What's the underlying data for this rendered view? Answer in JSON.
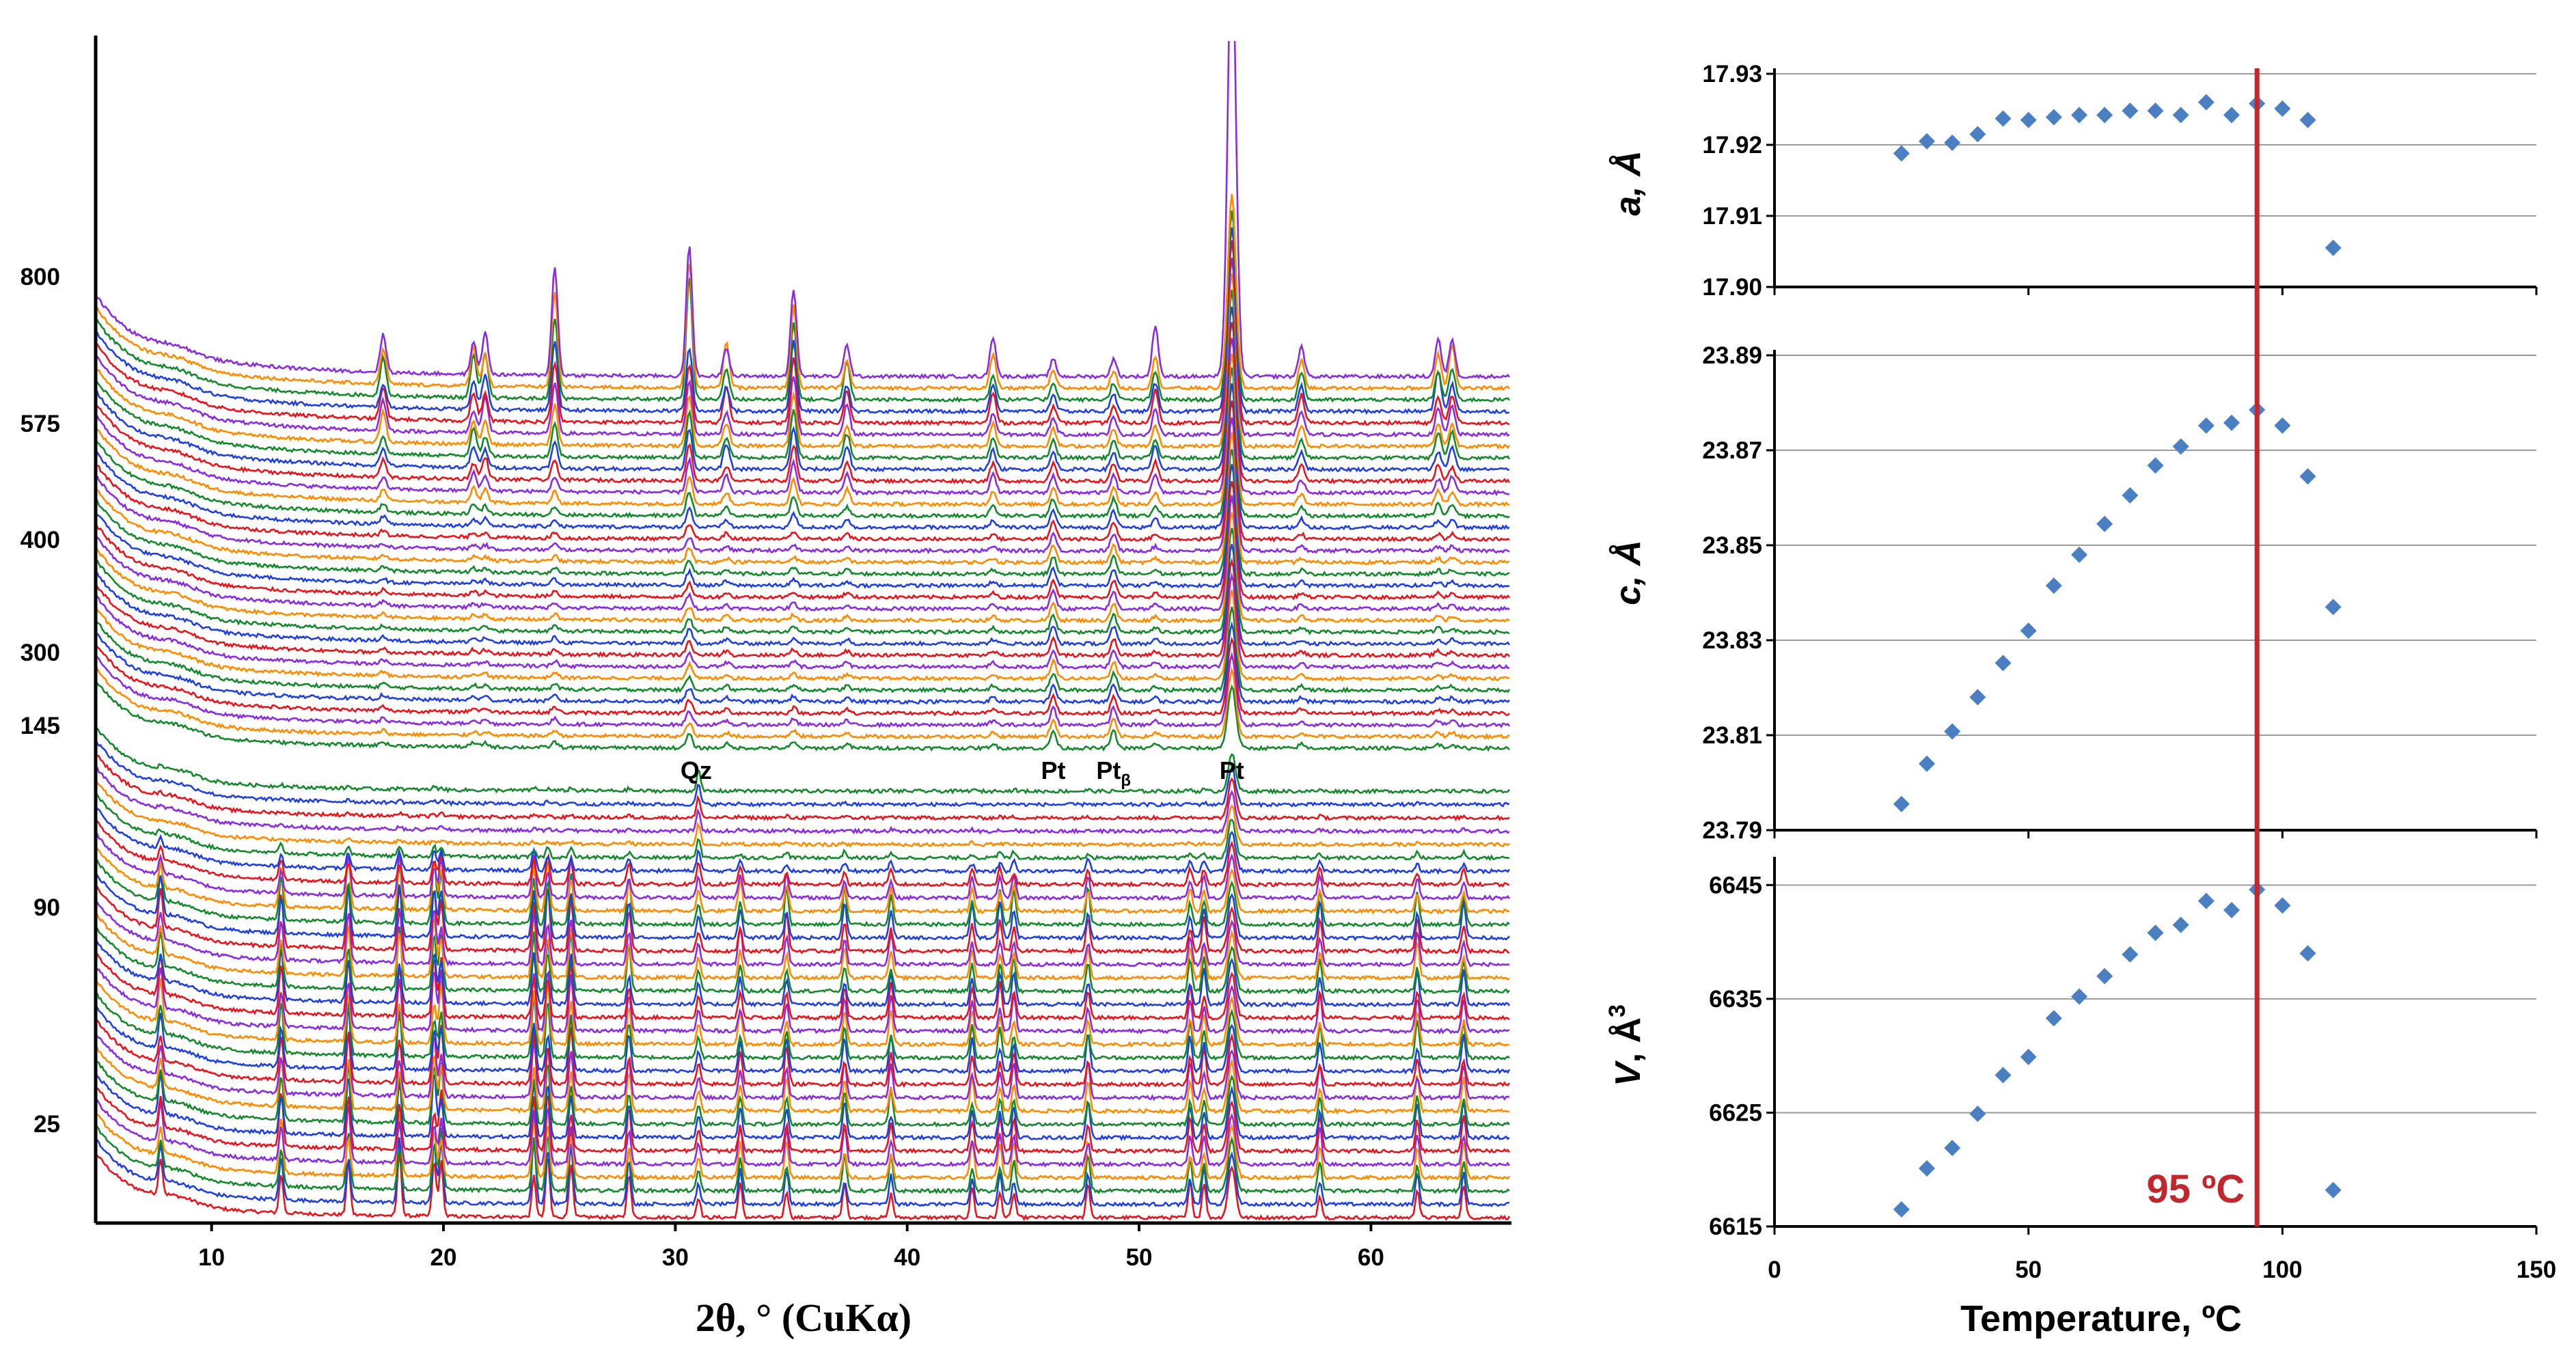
{
  "chart_data": [
    {
      "type": "line",
      "title": "",
      "xlabel": "2θ, ° (CuKα)",
      "xlim": [
        5,
        66
      ],
      "xticks": [
        10,
        20,
        30,
        40,
        50,
        60
      ],
      "temperature_labels": [
        "800",
        "575",
        "400",
        "300",
        "145",
        "90",
        "25"
      ],
      "peak_labels": [
        {
          "text": "Qz",
          "x": 30.9
        },
        {
          "text": "Pt",
          "x": 46.3
        },
        {
          "text": "Ptβ",
          "x": 48.9
        },
        {
          "text": "Pt",
          "x": 54.0
        }
      ],
      "colors": [
        "#e8131b",
        "#1f3fe0",
        "#14892c",
        "#ff8a00",
        "#8a2be2"
      ],
      "series_groups": [
        {
          "name": "low-temperature phase patterns",
          "count": 33,
          "peaks_2theta": [
            7.8,
            13.0,
            15.9,
            18.1,
            19.6,
            19.9,
            23.9,
            24.5,
            25.5,
            28.0,
            31.0,
            32.8,
            34.8,
            37.3,
            39.3,
            42.8,
            44.0,
            44.6,
            47.8,
            52.2,
            52.8,
            54.0,
            57.8,
            62.0,
            64.0
          ]
        },
        {
          "name": "high-temperature phase patterns",
          "count": 33,
          "peaks_2theta": [
            17.4,
            21.3,
            21.8,
            24.8,
            30.6,
            32.2,
            35.1,
            37.4,
            43.7,
            46.3,
            48.9,
            50.7,
            54.0,
            57.0,
            62.9,
            63.5
          ]
        }
      ]
    },
    {
      "type": "scatter",
      "ylabel": "a, Å",
      "ylim": [
        17.9,
        17.93
      ],
      "yticks": [
        "17.90",
        "17.91",
        "17.92",
        "17.93"
      ],
      "x": [
        25,
        30,
        35,
        40,
        45,
        50,
        55,
        60,
        65,
        70,
        75,
        80,
        85,
        90,
        95,
        100,
        105,
        110
      ],
      "values": [
        17.9188,
        17.9205,
        17.9203,
        17.9215,
        17.9237,
        17.9235,
        17.9239,
        17.9242,
        17.9242,
        17.9248,
        17.9248,
        17.9242,
        17.926,
        17.9242,
        17.9258,
        17.9251,
        17.9235,
        17.9055
      ]
    },
    {
      "type": "scatter",
      "ylabel": "c, Å",
      "ylim": [
        23.79,
        23.89
      ],
      "yticks": [
        "23.79",
        "23.81",
        "23.83",
        "23.85",
        "23.87",
        "23.89"
      ],
      "x": [
        25,
        30,
        35,
        40,
        45,
        50,
        55,
        60,
        65,
        70,
        75,
        80,
        85,
        90,
        95,
        100,
        105,
        110
      ],
      "values": [
        23.7955,
        23.804,
        23.8108,
        23.818,
        23.8252,
        23.832,
        23.8415,
        23.848,
        23.8545,
        23.8605,
        23.8668,
        23.8708,
        23.8752,
        23.8758,
        23.8785,
        23.8752,
        23.8645,
        23.837
      ]
    },
    {
      "type": "scatter",
      "ylabel": "V, Å3",
      "ylim": [
        6615,
        6647
      ],
      "yticks": [
        "6615",
        "6625",
        "6635",
        "6645"
      ],
      "x": [
        25,
        30,
        35,
        40,
        45,
        50,
        55,
        60,
        65,
        70,
        75,
        80,
        85,
        90,
        95,
        100,
        105,
        110
      ],
      "values": [
        6616.5,
        6620.1,
        6621.9,
        6624.9,
        6628.3,
        6629.9,
        6633.3,
        6635.2,
        6637.0,
        6638.9,
        6640.8,
        6641.5,
        6643.6,
        6642.8,
        6644.6,
        6643.2,
        6639.0,
        6618.2
      ]
    }
  ],
  "shared_x_axis": {
    "xlabel": "Temperature, ºC",
    "xlim": [
      0,
      150
    ],
    "xticks": [
      "0",
      "50",
      "100",
      "150"
    ]
  },
  "transition": {
    "value": 95,
    "label": "95 ºC",
    "color": "#c0282d"
  },
  "marker_color": "#4a7fc1"
}
